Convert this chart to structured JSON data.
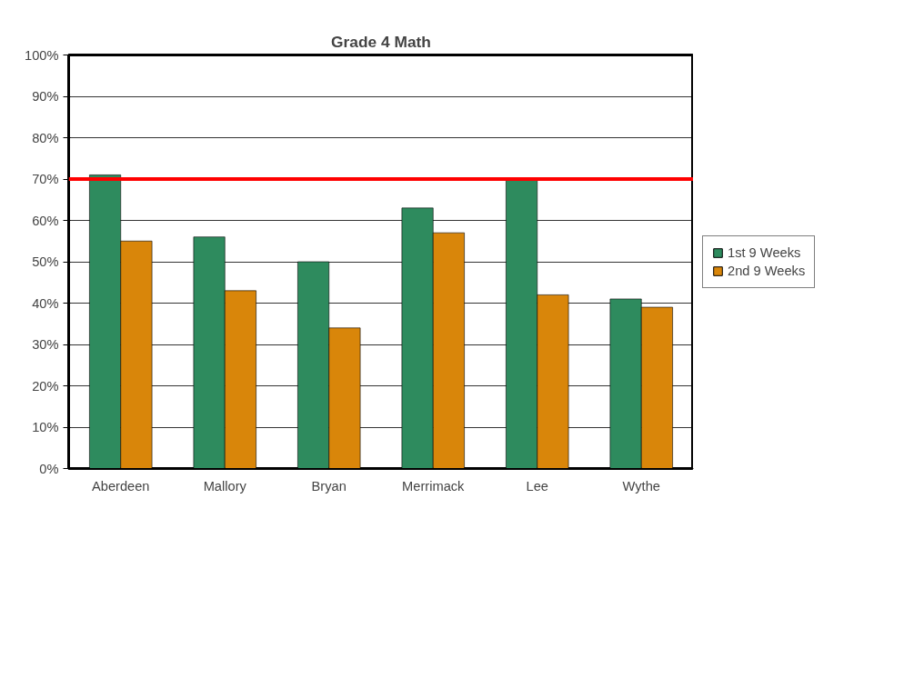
{
  "chart_data": {
    "type": "bar",
    "title": "Grade 4 Math",
    "categories": [
      "Aberdeen",
      "Mallory",
      "Bryan",
      "Merrimack",
      "Lee",
      "Wythe"
    ],
    "series": [
      {
        "name": "1st 9 Weeks",
        "color": "#2e8b5e",
        "values": [
          71,
          56,
          50,
          63,
          70,
          41
        ]
      },
      {
        "name": "2nd 9 Weeks",
        "color": "#d9860a",
        "values": [
          55,
          43,
          34,
          57,
          42,
          39
        ]
      }
    ],
    "ylim": [
      0,
      100
    ],
    "yticks": [
      {
        "value": 0,
        "label": "0%"
      },
      {
        "value": 10,
        "label": "10%"
      },
      {
        "value": 20,
        "label": "20%"
      },
      {
        "value": 30,
        "label": "30%"
      },
      {
        "value": 40,
        "label": "40%"
      },
      {
        "value": 50,
        "label": "50%"
      },
      {
        "value": 60,
        "label": "60%"
      },
      {
        "value": 70,
        "label": "70%"
      },
      {
        "value": 80,
        "label": "80%"
      },
      {
        "value": 90,
        "label": "90%"
      },
      {
        "value": 100,
        "label": "100%"
      }
    ],
    "ref_lines": [
      {
        "axis": "y",
        "value": 70,
        "label": null,
        "color": "#ff0000"
      }
    ],
    "grid": "y",
    "legend": "right"
  }
}
